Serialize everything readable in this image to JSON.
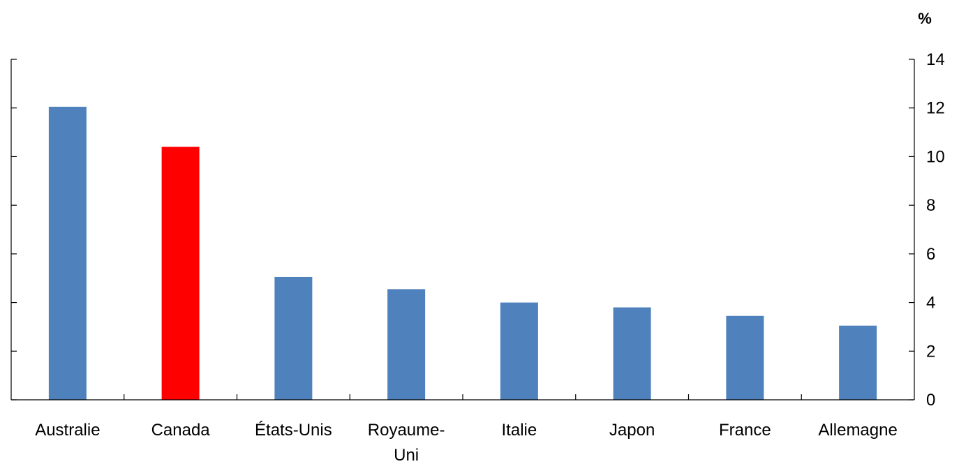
{
  "chart_data": {
    "type": "bar",
    "title": "",
    "xlabel": "",
    "ylabel": "%",
    "ylim": [
      0,
      14
    ],
    "yticks": [
      0,
      2,
      4,
      6,
      8,
      10,
      12,
      14
    ],
    "y_axis_side": "right",
    "grid": false,
    "legend": "none",
    "categories": [
      "Australie",
      "Canada",
      "États-Unis",
      "Royaume-Uni",
      "Italie",
      "Japon",
      "France",
      "Allemagne"
    ],
    "category_labels": [
      [
        "Australie"
      ],
      [
        "Canada"
      ],
      [
        "États-Unis"
      ],
      [
        "Royaume-",
        "Uni"
      ],
      [
        "Italie"
      ],
      [
        "Japon"
      ],
      [
        "France"
      ],
      [
        "Allemagne"
      ]
    ],
    "values": [
      12.05,
      10.4,
      5.05,
      4.55,
      4.0,
      3.8,
      3.45,
      3.05
    ],
    "colors": [
      "#4F81BD",
      "#FF0000",
      "#4F81BD",
      "#4F81BD",
      "#4F81BD",
      "#4F81BD",
      "#4F81BD",
      "#4F81BD"
    ]
  }
}
